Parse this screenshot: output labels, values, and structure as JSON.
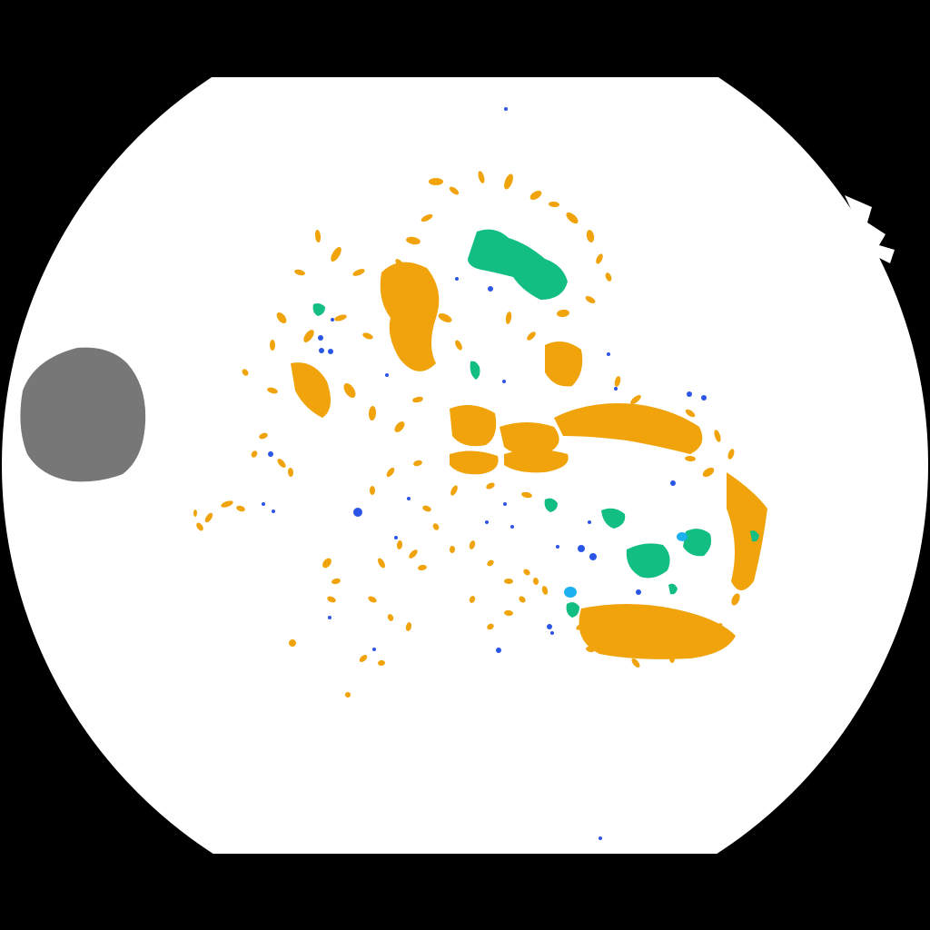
{
  "image": {
    "kind": "segmentation-mask",
    "background_color": "#000000",
    "fundus_color": "#ffffff",
    "optic_disc_color": "#777777"
  },
  "legend_colors": {
    "hard_exudate": "#f0a30a",
    "hemorrhage": "#12be82",
    "microaneurysm": "#2a55e6",
    "soft_exudate": "#1cb0f0"
  }
}
